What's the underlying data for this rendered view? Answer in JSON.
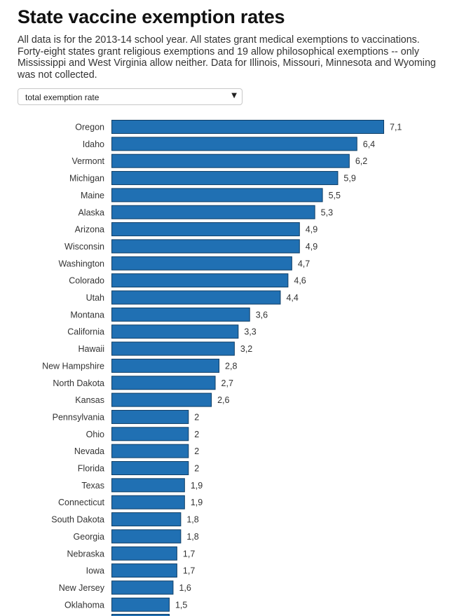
{
  "header": {
    "title": "State vaccine exemption rates",
    "subtitle": "All data is for the 2013-14 school year. All states grant medical exemptions to vaccinations. Forty-eight states grant religious exemptions and 19 allow philosophical exemptions -- only Mississippi and West Virginia allow neither. Data for Illinois, Missouri, Minnesota and Wyoming was not collected."
  },
  "filter": {
    "selected": "total exemption rate",
    "arrow_icon": "triangle-down"
  },
  "colors": {
    "bar": "#2070b3",
    "bar_border": "#0f3e66"
  },
  "chart_data": {
    "type": "bar",
    "orientation": "horizontal",
    "decimal_separator": ",",
    "categories": [
      "Oregon",
      "Idaho",
      "Vermont",
      "Michigan",
      "Maine",
      "Alaska",
      "Arizona",
      "Wisconsin",
      "Washington",
      "Colorado",
      "Utah",
      "Montana",
      "California",
      "Hawaii",
      "New Hampshire",
      "North Dakota",
      "Kansas",
      "Pennsylvania",
      "Ohio",
      "Nevada",
      "Florida",
      "Texas",
      "Connecticut",
      "South Dakota",
      "Georgia",
      "Nebraska",
      "Iowa",
      "New Jersey",
      "Oklahoma"
    ],
    "values": [
      7.1,
      6.4,
      6.2,
      5.9,
      5.5,
      5.3,
      4.9,
      4.9,
      4.7,
      4.6,
      4.4,
      3.6,
      3.3,
      3.2,
      2.8,
      2.7,
      2.6,
      2,
      2,
      2,
      2,
      1.9,
      1.9,
      1.8,
      1.8,
      1.7,
      1.7,
      1.6,
      1.5
    ],
    "value_labels": [
      "7,1",
      "6,4",
      "6,2",
      "5,9",
      "5,5",
      "5,3",
      "4,9",
      "4,9",
      "4,7",
      "4,6",
      "4,4",
      "3,6",
      "3,3",
      "3,2",
      "2,8",
      "2,7",
      "2,6",
      "2",
      "2",
      "2",
      "2",
      "1,9",
      "1,9",
      "1,8",
      "1,8",
      "1,7",
      "1,7",
      "1,6",
      "1,5"
    ],
    "xlim": [
      0,
      7.1
    ],
    "grid": false,
    "legend": "none"
  }
}
